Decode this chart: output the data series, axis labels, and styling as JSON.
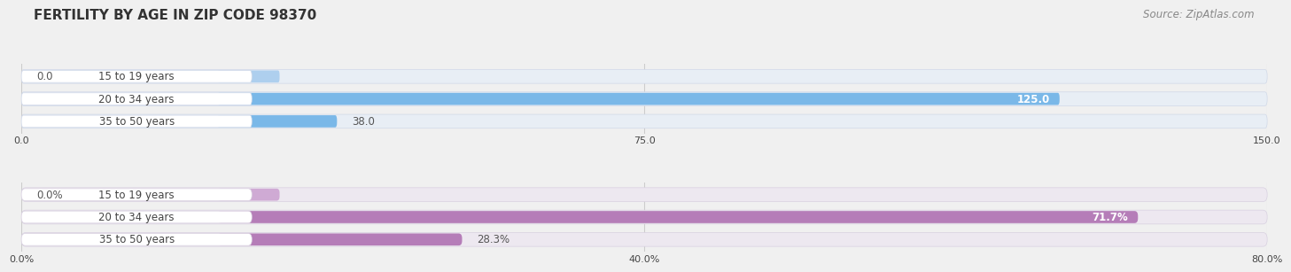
{
  "title": "FERTILITY BY AGE IN ZIP CODE 98370",
  "source": "Source: ZipAtlas.com",
  "top_chart": {
    "categories": [
      "15 to 19 years",
      "20 to 34 years",
      "35 to 50 years"
    ],
    "values": [
      0.0,
      125.0,
      38.0
    ],
    "xlim": [
      0,
      150
    ],
    "xticks": [
      0.0,
      75.0,
      150.0
    ],
    "xtick_labels": [
      "0.0",
      "75.0",
      "150.0"
    ],
    "bar_color": "#7ab8e8",
    "bar_color_light": "#aecfee",
    "bar_bg_color": "#e8eef5",
    "label_bg_color": "#ffffff",
    "label_border_color": "#d0d8e8"
  },
  "bottom_chart": {
    "categories": [
      "15 to 19 years",
      "20 to 34 years",
      "35 to 50 years"
    ],
    "values": [
      0.0,
      71.7,
      28.3
    ],
    "xlim": [
      0,
      80
    ],
    "xticks": [
      0.0,
      40.0,
      80.0
    ],
    "xtick_labels": [
      "0.0%",
      "40.0%",
      "80.0%"
    ],
    "bar_color": "#b57db8",
    "bar_color_light": "#cfaad4",
    "bar_bg_color": "#ede8f0",
    "label_bg_color": "#ffffff",
    "label_border_color": "#d8d0e0"
  },
  "fig_bg_color": "#f0f0f0",
  "chart_bg_color": "#f0f0f0",
  "bar_row_bg": "#f5f5f8",
  "label_text_color": "#444444",
  "value_text_color_inside": "#ffffff",
  "value_text_color_outside": "#555555",
  "title_color": "#333333",
  "source_color": "#888888",
  "grid_color": "#cccccc"
}
